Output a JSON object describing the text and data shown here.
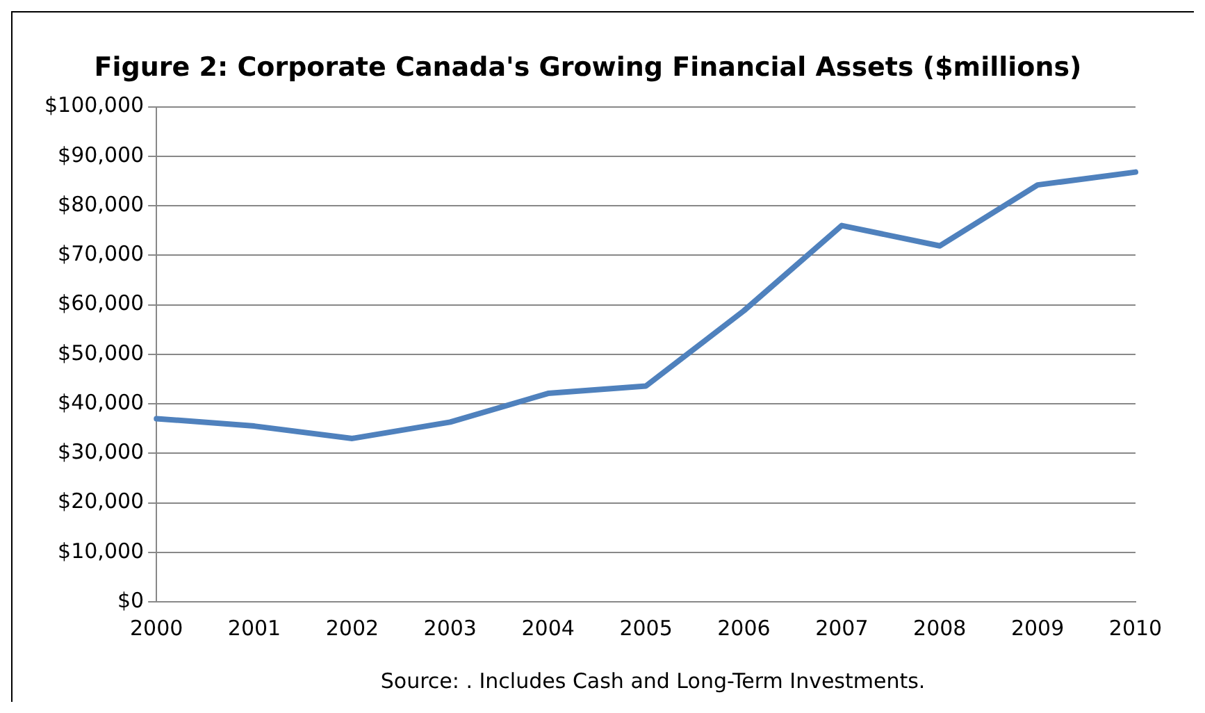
{
  "chart_data": {
    "type": "line",
    "title": "Figure 2: Corporate Canada's Growing Financial Assets ($millions)",
    "categories": [
      "2000",
      "2001",
      "2002",
      "2003",
      "2004",
      "2005",
      "2006",
      "2007",
      "2008",
      "2009",
      "2010"
    ],
    "series": [
      {
        "color": "#4f81bd",
        "values": [
          37000,
          35500,
          33000,
          36300,
          42100,
          43600,
          58800,
          76000,
          71900,
          84200,
          86800
        ]
      }
    ],
    "ylim": [
      0,
      100000
    ],
    "yticks": [
      {
        "value": 0,
        "label": "$0"
      },
      {
        "value": 10000,
        "label": "$10,000"
      },
      {
        "value": 20000,
        "label": "$20,000"
      },
      {
        "value": 30000,
        "label": "$30,000"
      },
      {
        "value": 40000,
        "label": "$40,000"
      },
      {
        "value": 50000,
        "label": "$50,000"
      },
      {
        "value": 60000,
        "label": "$60,000"
      },
      {
        "value": 70000,
        "label": "$70,000"
      },
      {
        "value": 80000,
        "label": "$80,000"
      },
      {
        "value": 90000,
        "label": "$90,000"
      },
      {
        "value": 100000,
        "label": "$100,000"
      }
    ],
    "grid": "y",
    "legend": false,
    "marker": "none",
    "line_style": "solid",
    "annotations": [
      "Source: . Includes Cash and Long-Term Investments."
    ]
  }
}
